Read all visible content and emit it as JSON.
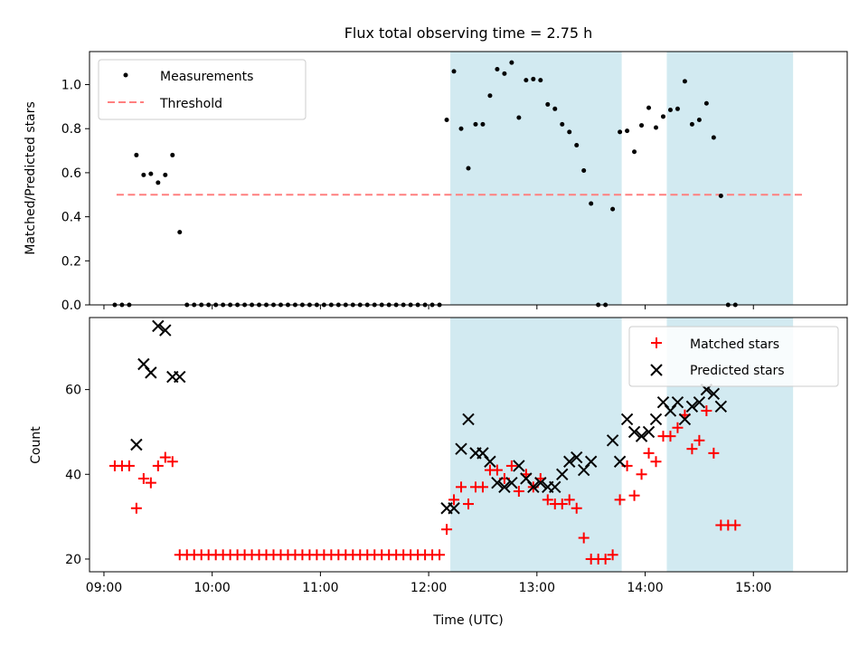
{
  "chart_data": [
    {
      "type": "scatter",
      "title": "Flux total observing time = 2.75 h",
      "ylabel": "Matched/Predicted stars",
      "xlim": [
        "08:52",
        "15:52"
      ],
      "ylim": [
        0,
        1.15
      ],
      "yticks": [
        "0.0",
        "0.2",
        "0.4",
        "0.6",
        "0.8",
        "1.0"
      ],
      "legend_position": "upper-left",
      "shaded_intervals": [
        [
          "12:12",
          "13:47"
        ],
        [
          "14:12",
          "15:22"
        ]
      ],
      "shade_color": "#add8e6",
      "series": [
        {
          "name": "Measurements",
          "marker": "dot",
          "color": "#000000",
          "points": [
            [
              "09:06",
              0
            ],
            [
              "09:10",
              0
            ],
            [
              "09:14",
              0
            ],
            [
              "09:18",
              0.68
            ],
            [
              "09:22",
              0.59
            ],
            [
              "09:26",
              0.595
            ],
            [
              "09:30",
              0.555
            ],
            [
              "09:34",
              0.59
            ],
            [
              "09:38",
              0.68
            ],
            [
              "09:42",
              0.33
            ],
            [
              "09:46",
              0
            ],
            [
              "09:50",
              0
            ],
            [
              "09:54",
              0
            ],
            [
              "09:58",
              0
            ],
            [
              "10:02",
              0
            ],
            [
              "10:06",
              0
            ],
            [
              "10:10",
              0
            ],
            [
              "10:14",
              0
            ],
            [
              "10:18",
              0
            ],
            [
              "10:22",
              0
            ],
            [
              "10:26",
              0
            ],
            [
              "10:30",
              0
            ],
            [
              "10:34",
              0
            ],
            [
              "10:38",
              0
            ],
            [
              "10:42",
              0
            ],
            [
              "10:46",
              0
            ],
            [
              "10:50",
              0
            ],
            [
              "10:54",
              0
            ],
            [
              "10:58",
              0
            ],
            [
              "11:02",
              0
            ],
            [
              "11:06",
              0
            ],
            [
              "11:10",
              0
            ],
            [
              "11:14",
              0
            ],
            [
              "11:18",
              0
            ],
            [
              "11:22",
              0
            ],
            [
              "11:26",
              0
            ],
            [
              "11:30",
              0
            ],
            [
              "11:34",
              0
            ],
            [
              "11:38",
              0
            ],
            [
              "11:42",
              0
            ],
            [
              "11:46",
              0
            ],
            [
              "11:50",
              0
            ],
            [
              "11:54",
              0
            ],
            [
              "11:58",
              0
            ],
            [
              "12:02",
              0
            ],
            [
              "12:06",
              0
            ],
            [
              "12:10",
              0.84
            ],
            [
              "12:14",
              1.06
            ],
            [
              "12:18",
              0.8
            ],
            [
              "12:22",
              0.62
            ],
            [
              "12:26",
              0.82
            ],
            [
              "12:30",
              0.82
            ],
            [
              "12:34",
              0.95
            ],
            [
              "12:38",
              1.07
            ],
            [
              "12:42",
              1.05
            ],
            [
              "12:46",
              1.1
            ],
            [
              "12:50",
              0.85
            ],
            [
              "12:54",
              1.02
            ],
            [
              "12:58",
              1.025
            ],
            [
              "13:02",
              1.02
            ],
            [
              "13:06",
              0.91
            ],
            [
              "13:10",
              0.89
            ],
            [
              "13:14",
              0.82
            ],
            [
              "13:18",
              0.785
            ],
            [
              "13:22",
              0.725
            ],
            [
              "13:26",
              0.61
            ],
            [
              "13:30",
              0.46
            ],
            [
              "13:34",
              0
            ],
            [
              "13:38",
              0
            ],
            [
              "13:42",
              0.435
            ],
            [
              "13:46",
              0.785
            ],
            [
              "13:50",
              0.79
            ],
            [
              "13:54",
              0.695
            ],
            [
              "13:58",
              0.815
            ],
            [
              "14:02",
              0.895
            ],
            [
              "14:06",
              0.805
            ],
            [
              "14:10",
              0.855
            ],
            [
              "14:14",
              0.885
            ],
            [
              "14:18",
              0.89
            ],
            [
              "14:22",
              1.015
            ],
            [
              "14:26",
              0.82
            ],
            [
              "14:30",
              0.84
            ],
            [
              "14:34",
              0.915
            ],
            [
              "14:38",
              0.76
            ],
            [
              "14:42",
              0.495
            ],
            [
              "14:46",
              0
            ],
            [
              "14:50",
              0
            ]
          ]
        },
        {
          "name": "Threshold",
          "marker": "dashed-line",
          "color": "#ff7f7f",
          "x": [
            "09:07",
            "15:29"
          ],
          "y": 0.5
        }
      ]
    },
    {
      "type": "scatter",
      "xlabel": "Time (UTC)",
      "ylabel": "Count",
      "xlim": [
        "08:52",
        "15:52"
      ],
      "ylim": [
        17,
        77
      ],
      "xticks": [
        "09:00",
        "10:00",
        "11:00",
        "12:00",
        "13:00",
        "14:00",
        "15:00"
      ],
      "yticks": [
        "20",
        "40",
        "60"
      ],
      "legend_position": "upper-right",
      "shaded_intervals": [
        [
          "12:12",
          "13:47"
        ],
        [
          "14:12",
          "15:22"
        ]
      ],
      "shade_color": "#add8e6",
      "series": [
        {
          "name": "Matched stars",
          "marker": "plus",
          "color": "#ff0000",
          "points": [
            [
              "09:06",
              42
            ],
            [
              "09:10",
              42
            ],
            [
              "09:14",
              42
            ],
            [
              "09:18",
              32
            ],
            [
              "09:22",
              39
            ],
            [
              "09:26",
              38
            ],
            [
              "09:30",
              42
            ],
            [
              "09:34",
              44
            ],
            [
              "09:38",
              43
            ],
            [
              "09:42",
              21
            ],
            [
              "09:46",
              21
            ],
            [
              "09:50",
              21
            ],
            [
              "09:54",
              21
            ],
            [
              "09:58",
              21
            ],
            [
              "10:02",
              21
            ],
            [
              "10:06",
              21
            ],
            [
              "10:10",
              21
            ],
            [
              "10:14",
              21
            ],
            [
              "10:18",
              21
            ],
            [
              "10:22",
              21
            ],
            [
              "10:26",
              21
            ],
            [
              "10:30",
              21
            ],
            [
              "10:34",
              21
            ],
            [
              "10:38",
              21
            ],
            [
              "10:42",
              21
            ],
            [
              "10:46",
              21
            ],
            [
              "10:50",
              21
            ],
            [
              "10:54",
              21
            ],
            [
              "10:58",
              21
            ],
            [
              "11:02",
              21
            ],
            [
              "11:06",
              21
            ],
            [
              "11:10",
              21
            ],
            [
              "11:14",
              21
            ],
            [
              "11:18",
              21
            ],
            [
              "11:22",
              21
            ],
            [
              "11:26",
              21
            ],
            [
              "11:30",
              21
            ],
            [
              "11:34",
              21
            ],
            [
              "11:38",
              21
            ],
            [
              "11:42",
              21
            ],
            [
              "11:46",
              21
            ],
            [
              "11:50",
              21
            ],
            [
              "11:54",
              21
            ],
            [
              "11:58",
              21
            ],
            [
              "12:02",
              21
            ],
            [
              "12:06",
              21
            ],
            [
              "12:10",
              27
            ],
            [
              "12:14",
              34
            ],
            [
              "12:18",
              37
            ],
            [
              "12:22",
              33
            ],
            [
              "12:26",
              37
            ],
            [
              "12:30",
              37
            ],
            [
              "12:34",
              41
            ],
            [
              "12:38",
              41
            ],
            [
              "12:42",
              39
            ],
            [
              "12:46",
              42
            ],
            [
              "12:50",
              36
            ],
            [
              "12:54",
              40
            ],
            [
              "12:58",
              37
            ],
            [
              "13:02",
              39
            ],
            [
              "13:06",
              34
            ],
            [
              "13:10",
              33
            ],
            [
              "13:14",
              33
            ],
            [
              "13:18",
              34
            ],
            [
              "13:22",
              32
            ],
            [
              "13:26",
              25
            ],
            [
              "13:30",
              20
            ],
            [
              "13:34",
              20
            ],
            [
              "13:38",
              20
            ],
            [
              "13:42",
              21
            ],
            [
              "13:46",
              34
            ],
            [
              "13:50",
              42
            ],
            [
              "13:54",
              35
            ],
            [
              "13:58",
              40
            ],
            [
              "14:02",
              45
            ],
            [
              "14:06",
              43
            ],
            [
              "14:10",
              49
            ],
            [
              "14:14",
              49
            ],
            [
              "14:18",
              51
            ],
            [
              "14:22",
              54
            ],
            [
              "14:26",
              46
            ],
            [
              "14:30",
              48
            ],
            [
              "14:34",
              55
            ],
            [
              "14:38",
              45
            ],
            [
              "14:42",
              28
            ],
            [
              "14:46",
              28
            ],
            [
              "14:50",
              28
            ]
          ]
        },
        {
          "name": "Predicted stars",
          "marker": "x",
          "color": "#000000",
          "points": [
            [
              "09:18",
              47
            ],
            [
              "09:22",
              66
            ],
            [
              "09:26",
              64
            ],
            [
              "09:30",
              75
            ],
            [
              "09:34",
              74
            ],
            [
              "09:38",
              63
            ],
            [
              "09:42",
              63
            ],
            [
              "12:10",
              32
            ],
            [
              "12:14",
              32
            ],
            [
              "12:18",
              46
            ],
            [
              "12:22",
              53
            ],
            [
              "12:26",
              45
            ],
            [
              "12:30",
              45
            ],
            [
              "12:34",
              43
            ],
            [
              "12:38",
              38
            ],
            [
              "12:42",
              37
            ],
            [
              "12:46",
              38
            ],
            [
              "12:50",
              42
            ],
            [
              "12:54",
              39
            ],
            [
              "12:58",
              37
            ],
            [
              "13:02",
              38
            ],
            [
              "13:06",
              37
            ],
            [
              "13:10",
              37
            ],
            [
              "13:14",
              40
            ],
            [
              "13:18",
              43
            ],
            [
              "13:22",
              44
            ],
            [
              "13:26",
              41
            ],
            [
              "13:30",
              43
            ],
            [
              "13:42",
              48
            ],
            [
              "13:46",
              43
            ],
            [
              "13:50",
              53
            ],
            [
              "13:54",
              50
            ],
            [
              "13:58",
              49
            ],
            [
              "14:02",
              50
            ],
            [
              "14:06",
              53
            ],
            [
              "14:10",
              57
            ],
            [
              "14:14",
              55
            ],
            [
              "14:18",
              57
            ],
            [
              "14:22",
              53
            ],
            [
              "14:26",
              56
            ],
            [
              "14:30",
              57
            ],
            [
              "14:34",
              60
            ],
            [
              "14:38",
              59
            ],
            [
              "14:42",
              56
            ]
          ]
        }
      ]
    }
  ]
}
